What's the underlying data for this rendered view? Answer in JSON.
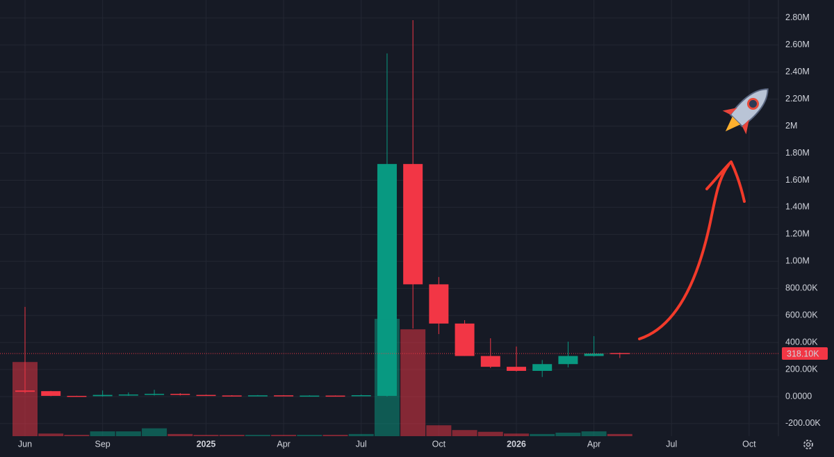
{
  "chart_data": {
    "type": "candlestick",
    "categories": [
      "Jun",
      null,
      null,
      "Sep",
      null,
      null,
      null,
      "2025",
      null,
      null,
      "Apr",
      null,
      null,
      "Jul",
      null,
      null,
      "Oct",
      null,
      null,
      "2026",
      null,
      null,
      "Apr",
      null,
      null,
      "Jul",
      null,
      null,
      "Oct"
    ],
    "open": [
      45000,
      40000,
      5000,
      3000,
      12000,
      15000,
      20000,
      12000,
      8000,
      6000,
      9000,
      6000,
      7000,
      5000,
      5000,
      1720000,
      830000,
      540000,
      300000,
      220000,
      190000,
      240000,
      300000,
      322000,
      null,
      null,
      null,
      null,
      null
    ],
    "high": [
      663000,
      42000,
      6000,
      45000,
      30000,
      50000,
      25000,
      14000,
      10000,
      11000,
      10000,
      9000,
      8000,
      14000,
      2538000,
      2784000,
      884000,
      565000,
      431000,
      370000,
      270000,
      406000,
      447000,
      325000,
      null,
      null,
      null,
      null,
      null
    ],
    "low": [
      25000,
      3000,
      1000,
      0,
      5000,
      8000,
      8000,
      5000,
      4000,
      4000,
      3000,
      4000,
      3000,
      3000,
      0,
      503000,
      462000,
      300000,
      211000,
      185000,
      145000,
      216000,
      295000,
      285000,
      null,
      null,
      null,
      null,
      null
    ],
    "close": [
      35000,
      5000,
      3000,
      12000,
      15000,
      20000,
      12000,
      8000,
      6000,
      9000,
      6000,
      7000,
      5000,
      10000,
      1720000,
      830000,
      540000,
      300000,
      220000,
      190000,
      240000,
      300000,
      318000,
      318100,
      null,
      null,
      null,
      null,
      null
    ],
    "up_color": "#089981",
    "down_color": "#f23645",
    "volume": {
      "values": [
        17,
        0.6,
        0.3,
        1.1,
        1.1,
        1.8,
        0.5,
        0.3,
        0.3,
        0.3,
        0.3,
        0.3,
        0.3,
        0.5,
        26.9,
        24.5,
        2.5,
        1.4,
        1,
        0.6,
        0.5,
        0.8,
        1.1,
        0.5,
        null,
        null,
        null,
        null,
        null
      ],
      "ylim": [
        0,
        100
      ]
    },
    "ylim": [
      -293000,
      2933000
    ],
    "yticks": [
      {
        "value": -200000,
        "label": "-200.00K"
      },
      {
        "value": 0,
        "label": "0.0000"
      },
      {
        "value": 200000,
        "label": "200.00K"
      },
      {
        "value": 400000,
        "label": "400.00K"
      },
      {
        "value": 600000,
        "label": "600.00K"
      },
      {
        "value": 800000,
        "label": "800.00K"
      },
      {
        "value": 1000000,
        "label": "1.00M"
      },
      {
        "value": 1200000,
        "label": "1.20M"
      },
      {
        "value": 1400000,
        "label": "1.40M"
      },
      {
        "value": 1600000,
        "label": "1.60M"
      },
      {
        "value": 1800000,
        "label": "1.80M"
      },
      {
        "value": 2000000,
        "label": "2M"
      },
      {
        "value": 2200000,
        "label": "2.20M"
      },
      {
        "value": 2400000,
        "label": "2.40M"
      },
      {
        "value": 2600000,
        "label": "2.60M"
      },
      {
        "value": 2800000,
        "label": "2.80M"
      }
    ],
    "last_price": {
      "value": 318100,
      "label": "318.10K"
    },
    "grid": true
  }
}
